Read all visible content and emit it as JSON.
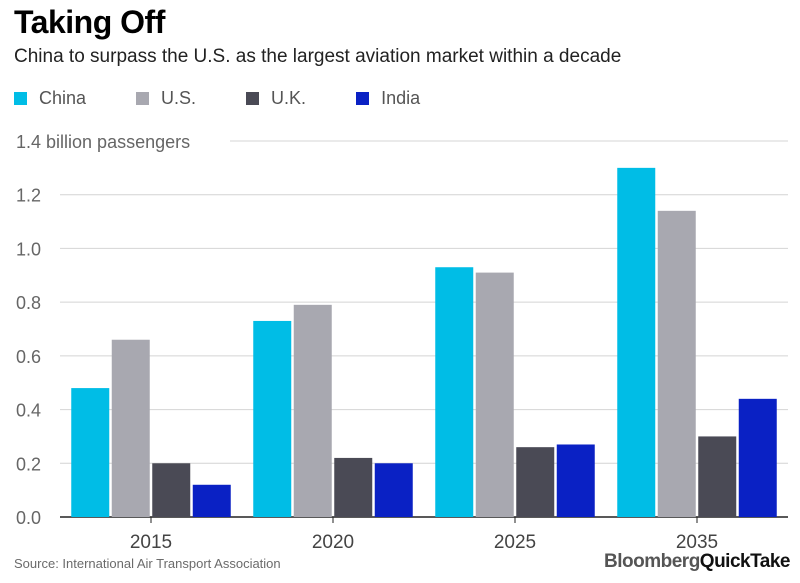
{
  "chart_data": {
    "type": "bar",
    "title": "Taking Off",
    "subtitle": "China to surpass the U.S. as the largest aviation market within a decade",
    "categories": [
      "2015",
      "2020",
      "2025",
      "2035"
    ],
    "series": [
      {
        "name": "China",
        "color": "#00bde6",
        "values": [
          0.48,
          0.73,
          0.93,
          1.3
        ]
      },
      {
        "name": "U.S.",
        "color": "#a8a8b0",
        "values": [
          0.66,
          0.79,
          0.91,
          1.14
        ]
      },
      {
        "name": "U.K.",
        "color": "#4a4a55",
        "values": [
          0.2,
          0.22,
          0.26,
          0.3
        ]
      },
      {
        "name": "India",
        "color": "#0a21c4",
        "values": [
          0.12,
          0.2,
          0.27,
          0.44
        ]
      }
    ],
    "ylabel": "",
    "xlabel": "",
    "ylim": [
      0,
      1.4
    ],
    "yticks": [
      "0.0",
      "0.2",
      "0.4",
      "0.6",
      "0.8",
      "1.0",
      "1.2",
      "1.4 billion passengers"
    ],
    "grid": true,
    "legend": "top-left"
  },
  "footer": {
    "source": "Source: International Air Transport Association",
    "brand_part1": "Bloomberg",
    "brand_part2": "QuickTake"
  }
}
